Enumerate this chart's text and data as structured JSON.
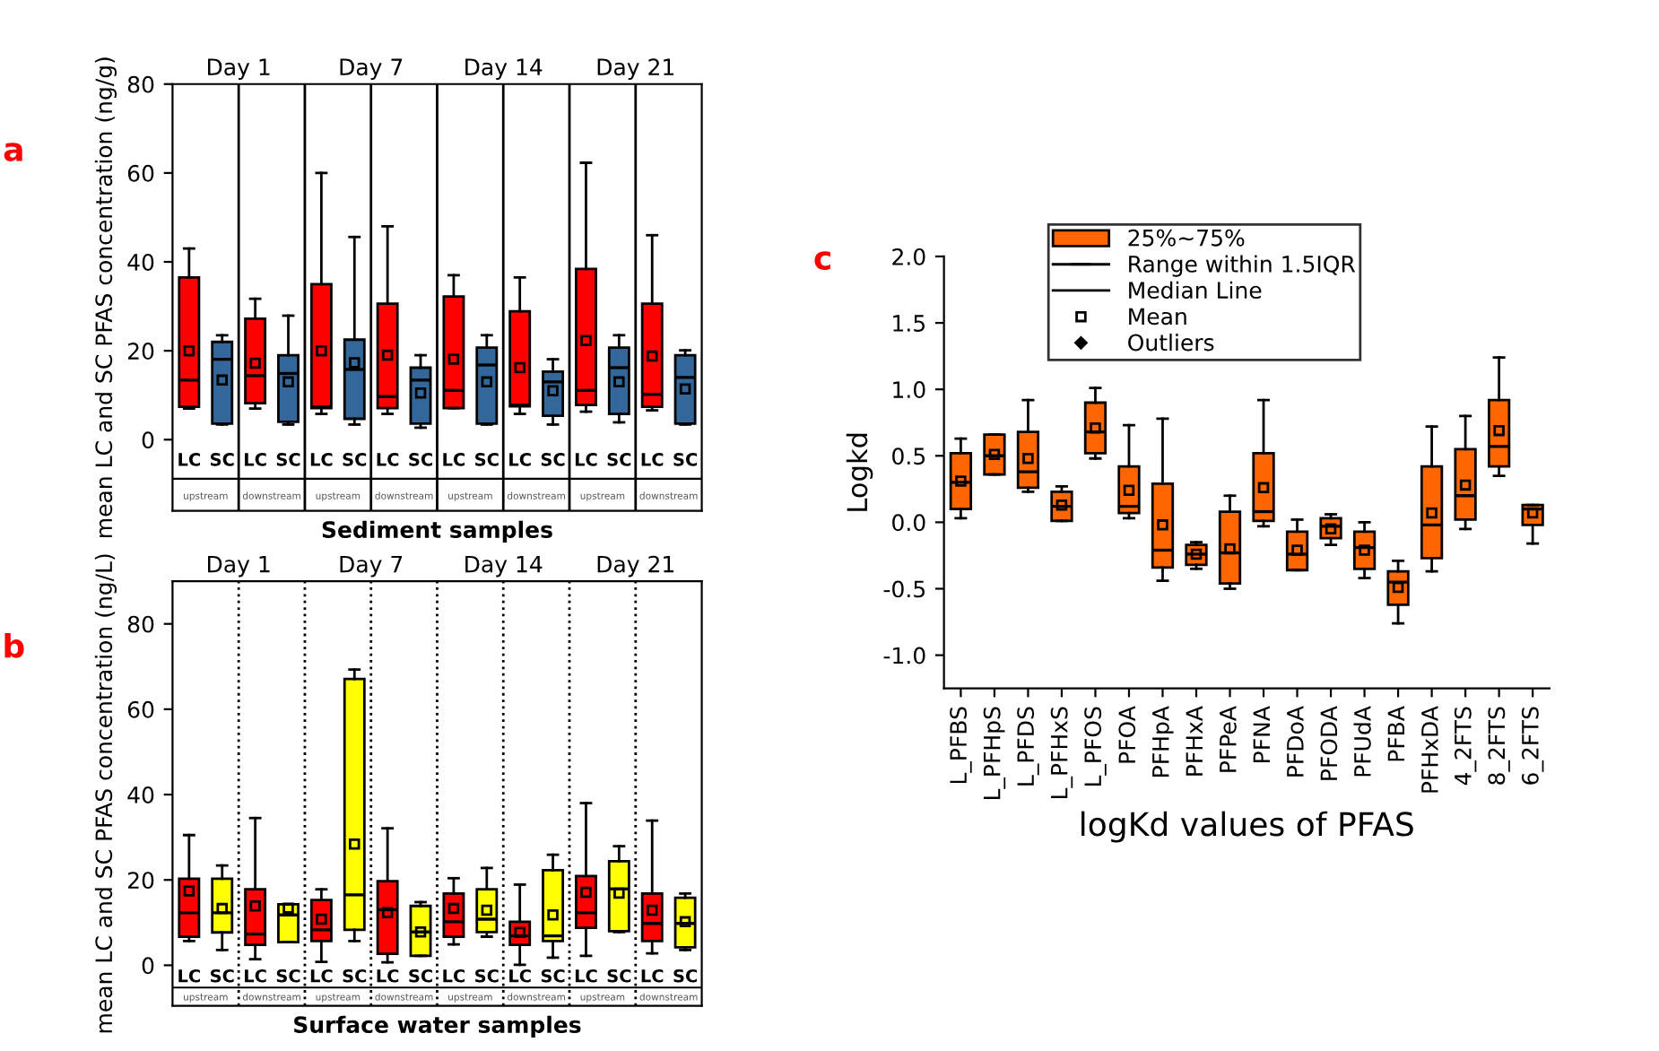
{
  "chart_data": [
    {
      "type": "box",
      "title": "a",
      "xlabel": "Sediment samples",
      "ylabel": "mean LC and SC PFAS concentration (ng/g)",
      "ylim": [
        -16,
        80
      ],
      "yticks": [
        0,
        20,
        40,
        60,
        80
      ],
      "line_style": "solid",
      "grid": false,
      "categories": [
        "LC",
        "SC",
        "LC",
        "SC",
        "LC",
        "SC",
        "LC",
        "SC",
        "LC",
        "SC",
        "LC",
        "SC",
        "LC",
        "SC",
        "LC",
        "SC"
      ],
      "annotations": [
        "Day 1",
        "Day 7",
        "Day 14",
        "Day 21",
        "upstream",
        "downstream",
        "upstream",
        "downstream",
        "upstream",
        "downstream",
        "upstream",
        "downstream"
      ],
      "series": [
        {
          "colors": [
            "#ff0000",
            "#336699",
            "#ff0000",
            "#336699",
            "#ff0000",
            "#336699",
            "#ff0000",
            "#336699",
            "#ff0000",
            "#336699",
            "#ff0000",
            "#336699",
            "#ff0000",
            "#336699",
            "#ff0000",
            "#336699"
          ],
          "boxes": [
            {
              "low": 7,
              "q1": 7.4,
              "median": 13.4,
              "q3": 36.5,
              "high": 43,
              "mean": 20
            },
            {
              "low": 3.4,
              "q1": 3.6,
              "median": 18.1,
              "q3": 22,
              "high": 23.5,
              "mean": 13.4
            },
            {
              "low": 7,
              "q1": 8.2,
              "median": 14.4,
              "q3": 27.2,
              "high": 31.7,
              "mean": 17.2
            },
            {
              "low": 3.4,
              "q1": 4,
              "median": 14.9,
              "q3": 19,
              "high": 27.9,
              "mean": 13
            },
            {
              "low": 5.8,
              "q1": 7.1,
              "median": 7.4,
              "q3": 35,
              "high": 60,
              "mean": 20
            },
            {
              "low": 3.4,
              "q1": 4.7,
              "median": 15.8,
              "q3": 22.5,
              "high": 45.6,
              "mean": 17.3
            },
            {
              "low": 5.8,
              "q1": 7.1,
              "median": 9.7,
              "q3": 30.6,
              "high": 48,
              "mean": 19
            },
            {
              "low": 2.7,
              "q1": 3.6,
              "median": 13.4,
              "q3": 16.2,
              "high": 19,
              "mean": 10.5
            },
            {
              "low": 7.1,
              "q1": 7.1,
              "median": 11.1,
              "q3": 32.2,
              "high": 37,
              "mean": 18.1
            },
            {
              "low": 3.4,
              "q1": 3.6,
              "median": 16.8,
              "q3": 20.7,
              "high": 23.5,
              "mean": 13
            },
            {
              "low": 5.8,
              "q1": 7.5,
              "median": 7.8,
              "q3": 28.9,
              "high": 36.5,
              "mean": 16.2
            },
            {
              "low": 3.4,
              "q1": 5.4,
              "median": 13,
              "q3": 15.3,
              "high": 18.1,
              "mean": 11
            },
            {
              "low": 6.3,
              "q1": 7.8,
              "median": 11.1,
              "q3": 38.4,
              "high": 62.3,
              "mean": 22.3
            },
            {
              "low": 3.9,
              "q1": 5.8,
              "median": 16.2,
              "q3": 20.7,
              "high": 23.5,
              "mean": 13
            },
            {
              "low": 6.6,
              "q1": 7.4,
              "median": 10.2,
              "q3": 30.6,
              "high": 46,
              "mean": 18.8
            },
            {
              "low": 3.4,
              "q1": 3.6,
              "median": 14,
              "q3": 19,
              "high": 20.1,
              "mean": 11.4
            }
          ]
        }
      ]
    },
    {
      "type": "box",
      "title": "b",
      "xlabel": "Surface water samples",
      "ylabel": "mean LC and SC PFAS concentration (ng/L)",
      "ylim": [
        -9.5,
        90
      ],
      "yticks": [
        0,
        20,
        40,
        60,
        80
      ],
      "line_style": "dotted",
      "grid": false,
      "categories": [
        "LC",
        "SC",
        "LC",
        "SC",
        "LC",
        "SC",
        "LC",
        "SC",
        "LC",
        "SC",
        "LC",
        "SC",
        "LC",
        "SC",
        "LC",
        "SC"
      ],
      "annotations": [
        "Day 1",
        "Day 7",
        "Day 14",
        "Day 21",
        "upstream",
        "downstream",
        "upstream",
        "downstream",
        "upstream",
        "downstream",
        "upstream",
        "downstream"
      ],
      "series": [
        {
          "colors": [
            "#ff0000",
            "#ffff00",
            "#ff0000",
            "#ffff00",
            "#ff0000",
            "#ffff00",
            "#ff0000",
            "#ffff00",
            "#ff0000",
            "#ffff00",
            "#ff0000",
            "#ffff00",
            "#ff0000",
            "#ffff00",
            "#ff0000",
            "#ffff00"
          ],
          "boxes": [
            {
              "low": 5.7,
              "q1": 6.7,
              "median": 12.3,
              "q3": 20.3,
              "high": 30.5,
              "mean": 17.4
            },
            {
              "low": 3.6,
              "q1": 7.7,
              "median": 12.3,
              "q3": 20.3,
              "high": 23.4,
              "mean": 13.3
            },
            {
              "low": 1.4,
              "q1": 4.8,
              "median": 7.3,
              "q3": 17.8,
              "high": 34.5,
              "mean": 13.9
            },
            {
              "low": 5.4,
              "q1": 5.4,
              "median": 11.8,
              "q3": 14.3,
              "high": 14.3,
              "mean": 13.4
            },
            {
              "low": 0.8,
              "q1": 5.7,
              "median": 8.3,
              "q3": 15.3,
              "high": 17.8,
              "mean": 10.8
            },
            {
              "low": 5.7,
              "q1": 8.3,
              "median": 16.5,
              "q3": 67.1,
              "high": 69.3,
              "mean": 28.4
            },
            {
              "low": 0.7,
              "q1": 2.7,
              "median": 13,
              "q3": 19.7,
              "high": 32.1,
              "mean": 12.3
            },
            {
              "low": 2.2,
              "q1": 2.2,
              "median": 7.8,
              "q3": 13.9,
              "high": 14.8,
              "mean": 7.8
            },
            {
              "low": 4.9,
              "q1": 6.7,
              "median": 10.2,
              "q3": 16.8,
              "high": 20.4,
              "mean": 13.3
            },
            {
              "low": 6.7,
              "q1": 7.8,
              "median": 10.8,
              "q3": 17.8,
              "high": 22.8,
              "mean": 12.9
            },
            {
              "low": 0.1,
              "q1": 4.8,
              "median": 6.9,
              "q3": 10.2,
              "high": 18.9,
              "mean": 7.7
            },
            {
              "low": 1.8,
              "q1": 5.7,
              "median": 6.9,
              "q3": 22.3,
              "high": 25.9,
              "mean": 11.8
            },
            {
              "low": 2.2,
              "q1": 8.8,
              "median": 12.3,
              "q3": 20.9,
              "high": 38,
              "mean": 17.1
            },
            {
              "low": 7.8,
              "q1": 8,
              "median": 17.9,
              "q3": 24.4,
              "high": 27.9,
              "mean": 16.9
            },
            {
              "low": 2.8,
              "q1": 5.7,
              "median": 9.8,
              "q3": 16.8,
              "high": 33.9,
              "mean": 12.9
            },
            {
              "low": 3.6,
              "q1": 4.2,
              "median": 9.8,
              "q3": 15.8,
              "high": 16.8,
              "mean": 10.2
            }
          ]
        }
      ]
    },
    {
      "type": "box",
      "title": "c",
      "xlabel": "logKd values of PFAS",
      "ylabel": "Logkd",
      "ylim": [
        -1.25,
        2.0
      ],
      "yticks": [
        {
          "value": -1.0,
          "label": "-1.0"
        },
        {
          "value": -0.5,
          "label": "-0.5"
        },
        {
          "value": 0.0,
          "label": "0.0"
        },
        {
          "value": 0.5,
          "label": "0.5"
        },
        {
          "value": 1.0,
          "label": "1.0"
        },
        {
          "value": 1.5,
          "label": "1.5"
        },
        {
          "value": 2.0,
          "label": "2.0"
        }
      ],
      "grid": false,
      "legend": "top",
      "categories": [
        "L_PFBS",
        "L_PFHpS",
        "L_PFDS",
        "L_PFHxS",
        "L_PFOS",
        "PFOA",
        "PFHpA",
        "PFHxA",
        "PFPeA",
        "PFNA",
        "PFDoA",
        "PFODA",
        "PFUdA",
        "PFBA",
        "PFHxDA",
        "4_2FTS",
        "8_2FTS",
        "6_2FTS"
      ],
      "annotations": [
        "Range within 1.5IQR",
        "Median Line",
        "Mean",
        "Outliers"
      ],
      "series": [
        {
          "name": "25%~75%",
          "color": "#ff6600",
          "boxes": [
            {
              "low": 0.03,
              "q1": 0.1,
              "median": 0.3,
              "q3": 0.52,
              "high": 0.63,
              "mean": 0.31
            },
            {
              "low": 0.36,
              "q1": 0.36,
              "median": 0.5,
              "q3": 0.66,
              "high": 0.66,
              "mean": 0.51
            },
            {
              "low": 0.23,
              "q1": 0.26,
              "median": 0.38,
              "q3": 0.68,
              "high": 0.92,
              "mean": 0.48
            },
            {
              "low": 0.01,
              "q1": 0.01,
              "median": 0.12,
              "q3": 0.23,
              "high": 0.27,
              "mean": 0.13
            },
            {
              "low": 0.48,
              "q1": 0.52,
              "median": 0.68,
              "q3": 0.9,
              "high": 1.01,
              "mean": 0.71
            },
            {
              "low": 0.03,
              "q1": 0.07,
              "median": 0.12,
              "q3": 0.42,
              "high": 0.73,
              "mean": 0.24
            },
            {
              "low": -0.44,
              "q1": -0.34,
              "median": -0.21,
              "q3": 0.29,
              "high": 0.78,
              "mean": -0.02
            },
            {
              "low": -0.35,
              "q1": -0.32,
              "median": -0.24,
              "q3": -0.17,
              "high": -0.15,
              "mean": -0.24
            },
            {
              "low": -0.5,
              "q1": -0.46,
              "median": -0.23,
              "q3": 0.08,
              "high": 0.2,
              "mean": -0.2
            },
            {
              "low": -0.03,
              "q1": 0.01,
              "median": 0.08,
              "q3": 0.52,
              "high": 0.92,
              "mean": 0.26
            },
            {
              "low": -0.36,
              "q1": -0.36,
              "median": -0.24,
              "q3": -0.07,
              "high": 0.02,
              "mean": -0.21
            },
            {
              "low": -0.17,
              "q1": -0.12,
              "median": -0.03,
              "q3": 0.03,
              "high": 0.06,
              "mean": -0.05
            },
            {
              "low": -0.42,
              "q1": -0.35,
              "median": -0.19,
              "q3": -0.07,
              "high": 0.0,
              "mean": -0.21
            },
            {
              "low": -0.76,
              "q1": -0.62,
              "median": -0.45,
              "q3": -0.37,
              "high": -0.29,
              "mean": -0.49
            },
            {
              "low": -0.37,
              "q1": -0.27,
              "median": -0.02,
              "q3": 0.42,
              "high": 0.72,
              "mean": 0.07
            },
            {
              "low": -0.05,
              "q1": 0.02,
              "median": 0.2,
              "q3": 0.55,
              "high": 0.8,
              "mean": 0.28
            },
            {
              "low": 0.35,
              "q1": 0.42,
              "median": 0.57,
              "q3": 0.92,
              "high": 1.24,
              "mean": 0.69
            },
            {
              "low": -0.16,
              "q1": -0.02,
              "median": 0.1,
              "q3": 0.13,
              "high": 0.13,
              "mean": 0.07
            }
          ]
        }
      ]
    }
  ]
}
